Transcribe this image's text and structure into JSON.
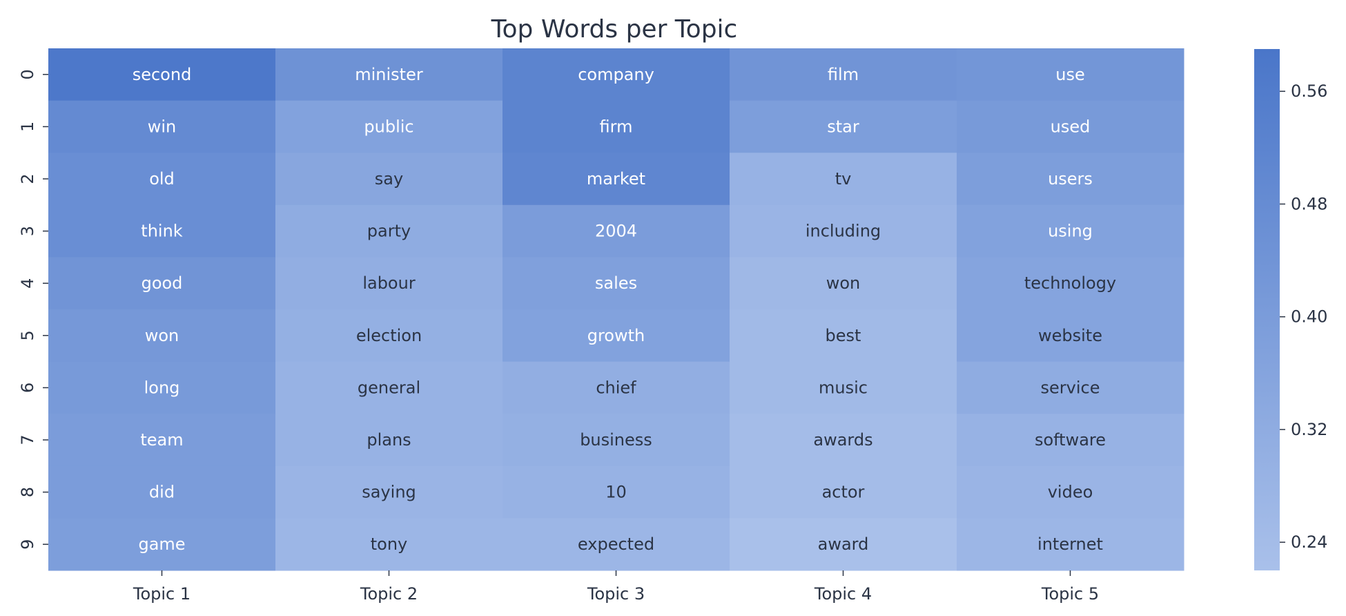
{
  "chart_data": {
    "type": "heatmap",
    "title": "Top Words per Topic",
    "columns": [
      "Topic 1",
      "Topic 2",
      "Topic 3",
      "Topic 4",
      "Topic 5"
    ],
    "rows": [
      "0",
      "1",
      "2",
      "3",
      "4",
      "5",
      "6",
      "7",
      "8",
      "9"
    ],
    "words": [
      [
        "second",
        "minister",
        "company",
        "film",
        "use"
      ],
      [
        "win",
        "public",
        "firm",
        "star",
        "used"
      ],
      [
        "old",
        "say",
        "market",
        "tv",
        "users"
      ],
      [
        "think",
        "party",
        "2004",
        "including",
        "using"
      ],
      [
        "good",
        "labour",
        "sales",
        "won",
        "technology"
      ],
      [
        "won",
        "election",
        "growth",
        "best",
        "website"
      ],
      [
        "long",
        "general",
        "chief",
        "music",
        "service"
      ],
      [
        "team",
        "plans",
        "business",
        "awards",
        "software"
      ],
      [
        "did",
        "saying",
        "10",
        "actor",
        "video"
      ],
      [
        "game",
        "tony",
        "expected",
        "award",
        "internet"
      ]
    ],
    "values": [
      [
        0.58,
        0.45,
        0.52,
        0.44,
        0.43
      ],
      [
        0.49,
        0.37,
        0.52,
        0.39,
        0.41
      ],
      [
        0.47,
        0.35,
        0.51,
        0.29,
        0.39
      ],
      [
        0.47,
        0.32,
        0.4,
        0.28,
        0.37
      ],
      [
        0.44,
        0.31,
        0.38,
        0.26,
        0.36
      ],
      [
        0.42,
        0.3,
        0.37,
        0.25,
        0.36
      ],
      [
        0.41,
        0.29,
        0.31,
        0.25,
        0.32
      ],
      [
        0.4,
        0.29,
        0.3,
        0.24,
        0.29
      ],
      [
        0.4,
        0.28,
        0.29,
        0.24,
        0.28
      ],
      [
        0.39,
        0.27,
        0.27,
        0.22,
        0.27
      ]
    ],
    "colorbar": {
      "min": 0.22,
      "max": 0.59,
      "ticks": [
        "0.24",
        "0.32",
        "0.40",
        "0.48",
        "0.56"
      ]
    },
    "colors": {
      "low": "#a9c0ea",
      "high": "#4a76c9",
      "text_dark": "#2b3445",
      "text_light": "#ffffff"
    },
    "light_text_threshold": 0.365
  }
}
